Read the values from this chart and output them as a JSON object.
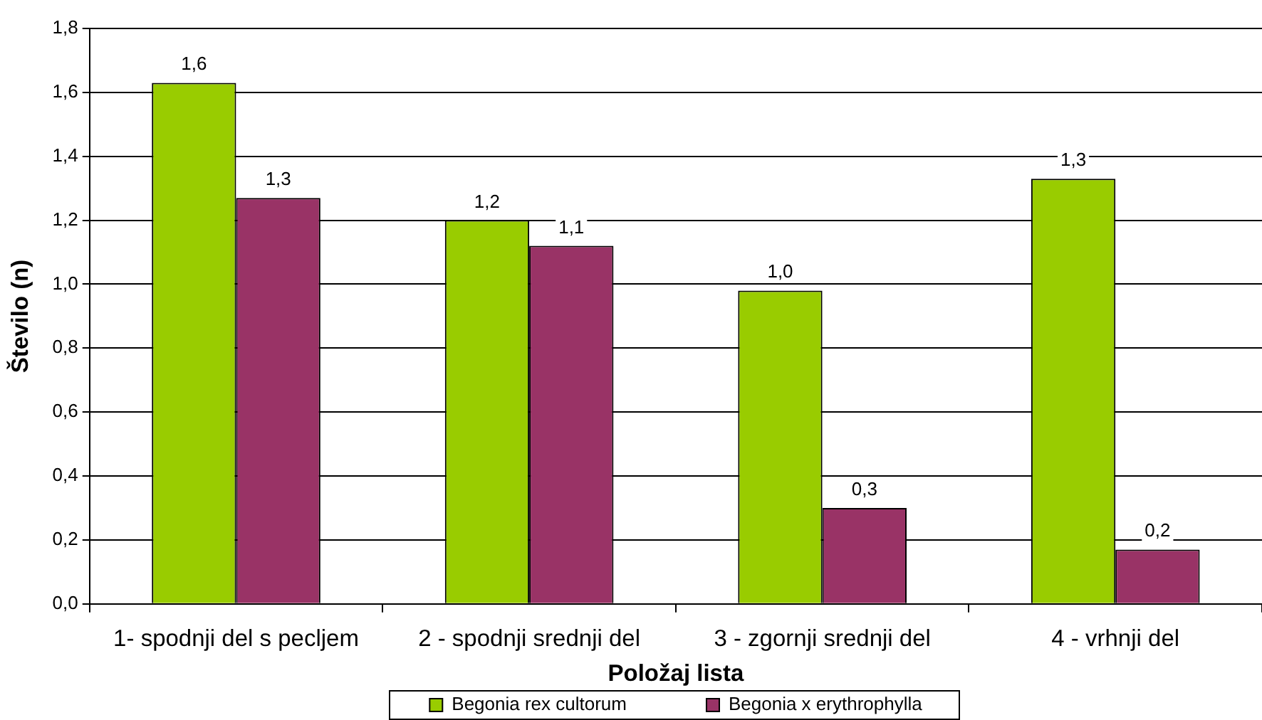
{
  "chart_data": {
    "type": "bar",
    "xlabel": "Položaj lista",
    "ylabel": "Število (n)",
    "categories": [
      "1- spodnji del s pecljem",
      "2 - spodnji srednji del",
      "3 - zgornji srednji del",
      "4 - vrhnji del"
    ],
    "series": [
      {
        "name": "Begonia rex cultorum",
        "color": "#99cc00",
        "values": [
          1.63,
          1.2,
          0.98,
          1.33
        ],
        "value_labels": [
          "1,6",
          "1,2",
          "1,0",
          "1,3"
        ]
      },
      {
        "name": "Begonia x erythrophylla",
        "color": "#993366",
        "values": [
          1.27,
          1.12,
          0.3,
          0.17
        ],
        "value_labels": [
          "1,3",
          "1,1",
          "0,3",
          "0,2"
        ]
      }
    ],
    "ylim": [
      0,
      1.8
    ],
    "yticks": [
      {
        "value": 0,
        "label": "0,0"
      },
      {
        "value": 0.2,
        "label": "0,2"
      },
      {
        "value": 0.4,
        "label": "0,4"
      },
      {
        "value": 0.6,
        "label": "0,6"
      },
      {
        "value": 0.8,
        "label": "0,8"
      },
      {
        "value": 1,
        "label": "1,0"
      },
      {
        "value": 1.2,
        "label": "1,2"
      },
      {
        "value": 1.4,
        "label": "1,4"
      },
      {
        "value": 1.6,
        "label": "1,6"
      },
      {
        "value": 1.8,
        "label": "1,8"
      }
    ],
    "grid": "y",
    "legend": "bottom"
  }
}
